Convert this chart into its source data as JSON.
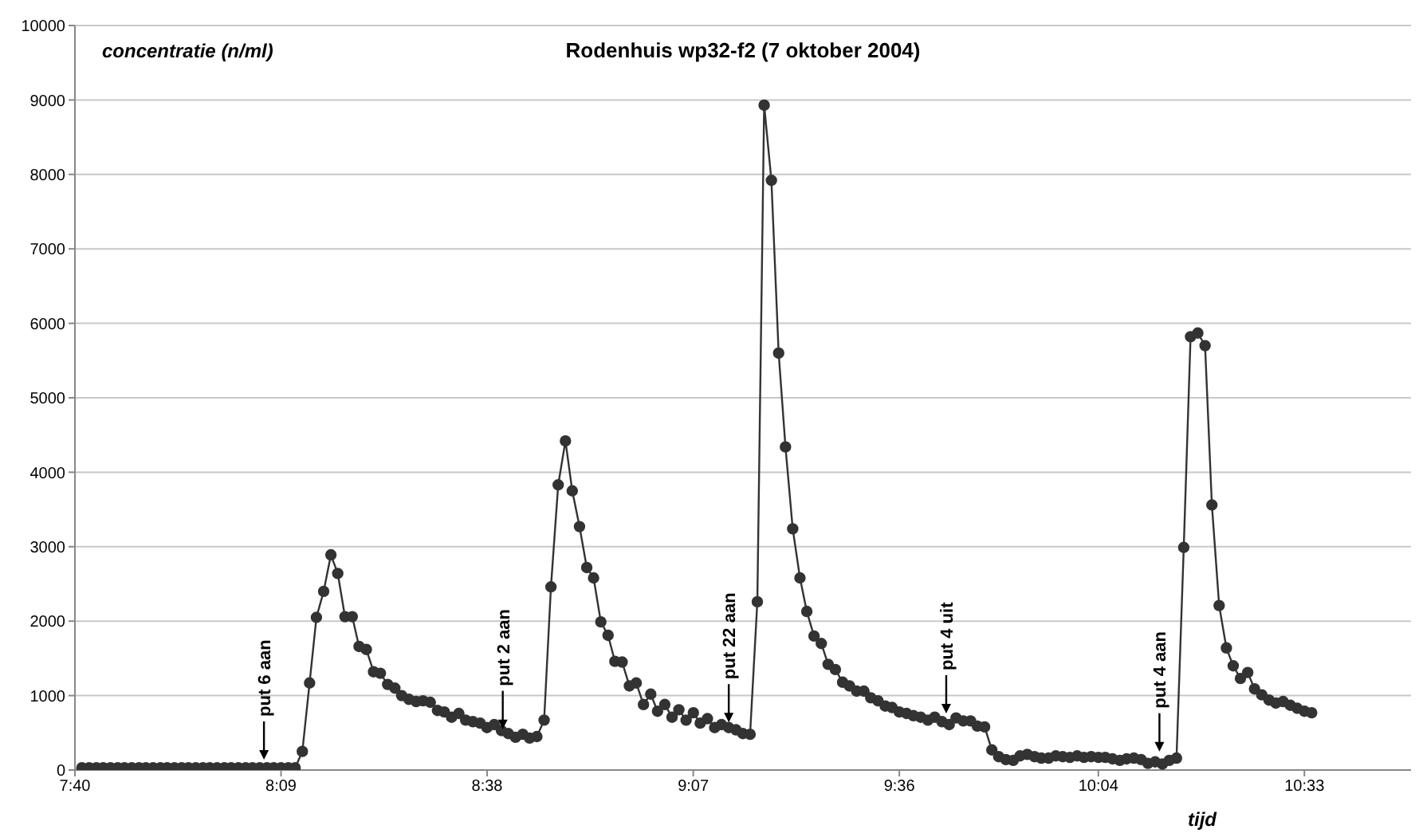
{
  "chart_data": {
    "type": "line",
    "title": "Rodenhuis wp32-f2 (7 oktober 2004)",
    "xlabel": "tijd",
    "ylabel": "concentratie (n/ml)",
    "x": [
      7.683,
      7.7,
      7.717,
      7.733,
      7.75,
      7.767,
      7.783,
      7.8,
      7.817,
      7.833,
      7.85,
      7.867,
      7.883,
      7.9,
      7.917,
      7.933,
      7.95,
      7.967,
      7.983,
      8.0,
      8.017,
      8.033,
      8.05,
      8.067,
      8.083,
      8.1,
      8.117,
      8.133,
      8.15,
      8.167,
      8.183,
      8.2,
      8.217,
      8.233,
      8.25,
      8.267,
      8.283,
      8.3,
      8.317,
      8.333,
      8.35,
      8.367,
      8.383,
      8.4,
      8.417,
      8.433,
      8.45,
      8.467,
      8.483,
      8.5,
      8.517,
      8.533,
      8.55,
      8.567,
      8.583,
      8.6,
      8.617,
      8.633,
      8.65,
      8.667,
      8.683,
      8.7,
      8.717,
      8.733,
      8.75,
      8.767,
      8.783,
      8.8,
      8.817,
      8.833,
      8.85,
      8.867,
      8.883,
      8.9,
      8.917,
      8.933,
      8.95,
      8.967,
      8.983,
      9.0,
      9.017,
      9.033,
      9.05,
      9.067,
      9.083,
      9.1,
      9.117,
      9.133,
      9.15,
      9.167,
      9.183,
      9.2,
      9.217,
      9.233,
      9.25,
      9.267,
      9.283,
      9.3,
      9.317,
      9.333,
      9.35,
      9.367,
      9.383,
      9.4,
      9.417,
      9.433,
      9.45,
      9.467,
      9.483,
      9.5,
      9.517,
      9.533,
      9.55,
      9.567,
      9.583,
      9.6,
      9.617,
      9.633,
      9.65,
      9.667,
      9.683,
      9.7,
      9.717,
      9.733,
      9.75,
      9.767,
      9.783,
      9.8,
      9.817,
      9.833,
      9.85,
      9.867,
      9.883,
      9.9,
      9.917,
      9.933,
      9.95,
      9.967,
      9.983,
      10.0,
      10.017,
      10.033,
      10.05,
      10.067,
      10.083,
      10.1,
      10.117,
      10.133,
      10.15,
      10.167,
      10.183,
      10.2,
      10.217,
      10.233,
      10.25,
      10.267,
      10.283,
      10.3,
      10.317,
      10.333,
      10.35,
      10.367,
      10.383,
      10.4,
      10.417,
      10.433,
      10.45,
      10.467,
      10.483,
      10.5,
      10.517,
      10.533,
      10.55,
      10.567
    ],
    "series": [
      {
        "color": "#333333",
        "values": [
          30,
          30,
          30,
          30,
          30,
          30,
          30,
          30,
          30,
          30,
          30,
          30,
          30,
          30,
          30,
          30,
          30,
          30,
          30,
          30,
          30,
          30,
          30,
          30,
          30,
          30,
          30,
          30,
          30,
          30,
          30,
          250,
          1170,
          2050,
          2400,
          2890,
          2640,
          2060,
          2060,
          1660,
          1620,
          1320,
          1300,
          1150,
          1100,
          1000,
          950,
          920,
          930,
          910,
          800,
          780,
          710,
          760,
          670,
          650,
          630,
          570,
          610,
          530,
          490,
          440,
          480,
          430,
          450,
          670,
          2460,
          3830,
          4420,
          3750,
          3270,
          2720,
          2580,
          1990,
          1810,
          1460,
          1450,
          1130,
          1170,
          880,
          1020,
          790,
          880,
          710,
          810,
          670,
          770,
          630,
          690,
          570,
          610,
          570,
          540,
          490,
          480,
          2260,
          8930,
          7920,
          5600,
          4340,
          3240,
          2580,
          2130,
          1800,
          1700,
          1420,
          1350,
          1180,
          1130,
          1060,
          1060,
          970,
          930,
          860,
          840,
          780,
          760,
          730,
          710,
          670,
          710,
          650,
          610,
          700,
          660,
          660,
          590,
          580,
          270,
          180,
          140,
          130,
          190,
          210,
          180,
          160,
          160,
          190,
          180,
          170,
          190,
          170,
          180,
          170,
          170,
          150,
          130,
          150,
          160,
          140,
          90,
          110,
          80,
          130,
          160,
          2990,
          5820,
          5870,
          5700,
          3560,
          2210,
          1640,
          1400,
          1230,
          1310,
          1090,
          1010,
          940,
          900,
          920,
          870,
          830,
          790,
          770
        ]
      }
    ],
    "xlim": [
      7.6667,
      10.8
    ],
    "xticks": [
      {
        "value": 7.6667,
        "label": "7:40"
      },
      {
        "value": 8.15,
        "label": "8:09"
      },
      {
        "value": 8.6333,
        "label": "8:38"
      },
      {
        "value": 9.1167,
        "label": "9:07"
      },
      {
        "value": 9.6,
        "label": "9:36"
      },
      {
        "value": 10.0667,
        "label": "10:04"
      },
      {
        "value": 10.55,
        "label": "10:33"
      }
    ],
    "ylim": [
      0,
      10000
    ],
    "yticks": [
      0,
      1000,
      2000,
      3000,
      4000,
      5000,
      6000,
      7000,
      8000,
      9000,
      10000
    ],
    "grid": "y",
    "marker": "circle",
    "annotations": [
      {
        "text": "put 6 aan",
        "x": 8.11,
        "y": 140
      },
      {
        "text": "put 2 aan",
        "x": 8.67,
        "y": 550
      },
      {
        "text": "put 22 aan",
        "x": 9.2,
        "y": 640
      },
      {
        "text": "put 4 uit",
        "x": 9.71,
        "y": 760
      },
      {
        "text": "put 4 aan",
        "x": 10.21,
        "y": 250
      }
    ]
  }
}
